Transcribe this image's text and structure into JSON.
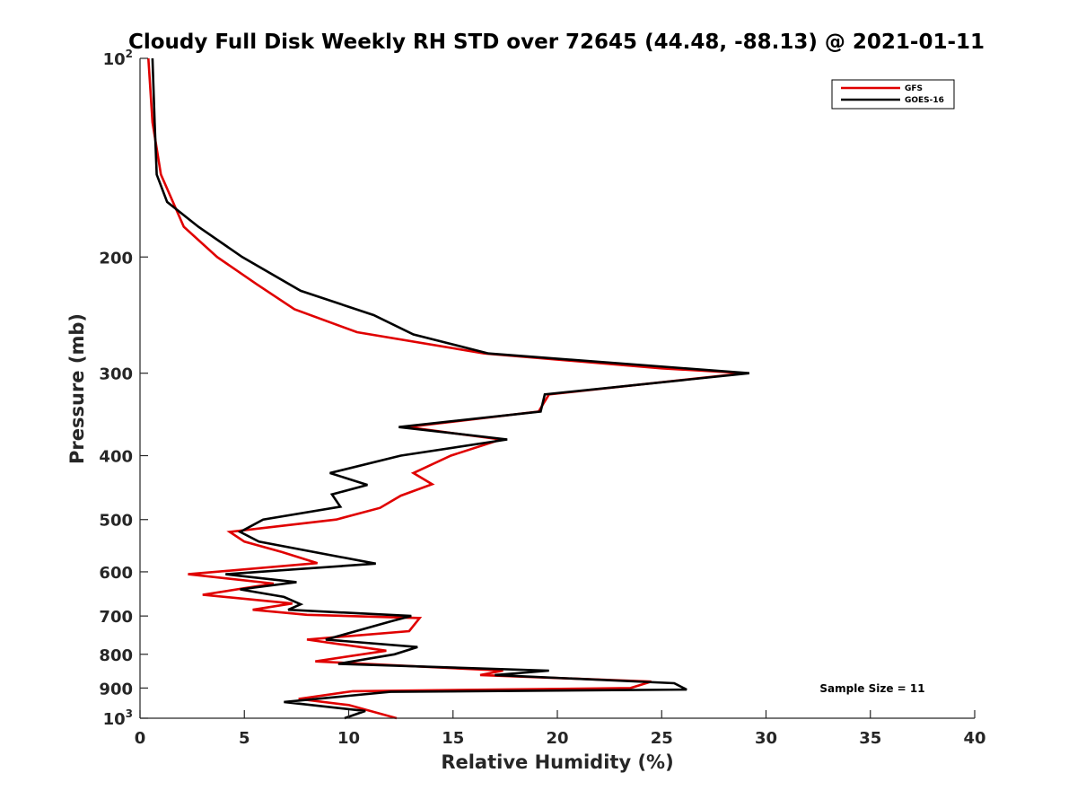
{
  "chart_data": {
    "type": "line",
    "title": "Cloudy Full Disk Weekly RH STD over 72645 (44.48, -88.13) @ 2021-01-11",
    "xlabel": "Relative Humidity (%)",
    "ylabel": "Pressure (mb)",
    "xlim": [
      0,
      40
    ],
    "ylim": [
      100,
      1000
    ],
    "y_scale": "log",
    "y_reversed": true,
    "x_ticks": [
      "0",
      "5",
      "10",
      "15",
      "20",
      "25",
      "30",
      "35",
      "40"
    ],
    "y_ticks": [
      {
        "value": 100,
        "base": "10",
        "exp": "2"
      },
      {
        "value": 200,
        "label": "200"
      },
      {
        "value": 300,
        "label": "300"
      },
      {
        "value": 400,
        "label": "400"
      },
      {
        "value": 500,
        "label": "500"
      },
      {
        "value": 600,
        "label": "600"
      },
      {
        "value": 700,
        "label": "700"
      },
      {
        "value": 800,
        "label": "800"
      },
      {
        "value": 900,
        "label": "900"
      },
      {
        "value": 1000,
        "base": "10",
        "exp": "3"
      }
    ],
    "legend_position": "top-right",
    "grid": false,
    "annotation": "Sample Size = 11",
    "series": [
      {
        "name": "GFS",
        "color": "#e00000",
        "points": [
          [
            0.4,
            100
          ],
          [
            0.6,
            125
          ],
          [
            1.0,
            150
          ],
          [
            2.1,
            180
          ],
          [
            3.7,
            200
          ],
          [
            5.6,
            220
          ],
          [
            7.4,
            240
          ],
          [
            10.4,
            260
          ],
          [
            16.5,
            280
          ],
          [
            25.0,
            295
          ],
          [
            29.0,
            300
          ],
          [
            19.6,
            323
          ],
          [
            19.1,
            343
          ],
          [
            12.8,
            362
          ],
          [
            17.3,
            378
          ],
          [
            14.9,
            400
          ],
          [
            13.1,
            425
          ],
          [
            14.0,
            442
          ],
          [
            12.5,
            460
          ],
          [
            11.5,
            480
          ],
          [
            9.4,
            500
          ],
          [
            4.3,
            522
          ],
          [
            5.0,
            540
          ],
          [
            6.8,
            560
          ],
          [
            8.5,
            582
          ],
          [
            2.3,
            605
          ],
          [
            6.4,
            625
          ],
          [
            3.0,
            650
          ],
          [
            7.3,
            670
          ],
          [
            5.4,
            685
          ],
          [
            8.0,
            697
          ],
          [
            13.4,
            705
          ],
          [
            12.9,
            738
          ],
          [
            8.0,
            760
          ],
          [
            11.8,
            790
          ],
          [
            8.4,
            820
          ],
          [
            17.4,
            847
          ],
          [
            16.3,
            860
          ],
          [
            24.5,
            880
          ],
          [
            23.5,
            900
          ],
          [
            10.2,
            910
          ],
          [
            7.6,
            935
          ],
          [
            10.0,
            955
          ],
          [
            12.3,
            1000
          ]
        ]
      },
      {
        "name": "GOES-16",
        "color": "#000000",
        "points": [
          [
            0.6,
            100
          ],
          [
            0.7,
            125
          ],
          [
            0.8,
            150
          ],
          [
            1.3,
            165
          ],
          [
            2.8,
            180
          ],
          [
            4.9,
            200
          ],
          [
            7.7,
            225
          ],
          [
            11.2,
            245
          ],
          [
            13.1,
            262
          ],
          [
            16.7,
            280
          ],
          [
            29.2,
            300
          ],
          [
            19.4,
            323
          ],
          [
            19.2,
            343
          ],
          [
            12.4,
            362
          ],
          [
            17.6,
            378
          ],
          [
            12.5,
            400
          ],
          [
            9.1,
            425
          ],
          [
            10.9,
            443
          ],
          [
            9.2,
            458
          ],
          [
            9.6,
            478
          ],
          [
            5.9,
            500
          ],
          [
            4.8,
            522
          ],
          [
            5.7,
            540
          ],
          [
            11.3,
            583
          ],
          [
            4.1,
            605
          ],
          [
            7.5,
            622
          ],
          [
            4.8,
            638
          ],
          [
            6.9,
            655
          ],
          [
            7.7,
            672
          ],
          [
            7.1,
            685
          ],
          [
            13.0,
            700
          ],
          [
            12.1,
            712
          ],
          [
            8.9,
            760
          ],
          [
            13.3,
            780
          ],
          [
            12.2,
            800
          ],
          [
            9.5,
            827
          ],
          [
            19.6,
            847
          ],
          [
            17.0,
            860
          ],
          [
            25.6,
            885
          ],
          [
            26.2,
            905
          ],
          [
            12.0,
            912
          ],
          [
            6.9,
            945
          ],
          [
            10.8,
            975
          ],
          [
            9.8,
            1000
          ]
        ]
      }
    ]
  }
}
